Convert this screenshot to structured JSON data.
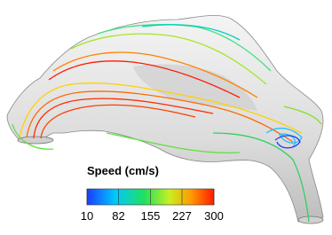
{
  "colorbar": {
    "title": "Speed (cm/s)",
    "range": [
      10,
      300
    ],
    "ticks": [
      10,
      82,
      155,
      227,
      300
    ]
  }
}
